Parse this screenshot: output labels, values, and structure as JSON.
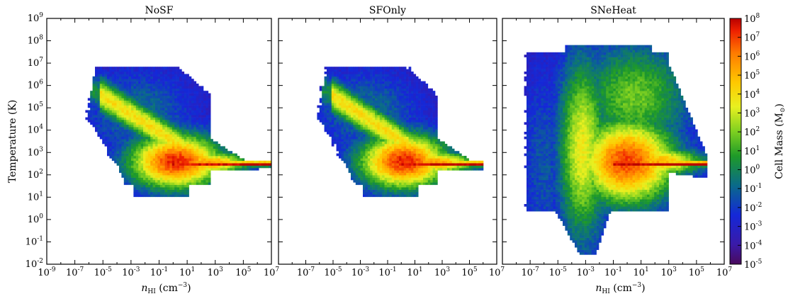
{
  "chart_data": [
    {
      "type": "heatmap",
      "title": "NoSF",
      "xlabel": "n_HI (cm^-3)",
      "ylabel": "Temperature (K)",
      "x_scale": "log",
      "y_scale": "log",
      "xlim": [
        1e-09,
        10000000.0
      ],
      "ylim": [
        0.01,
        1000000000.0
      ],
      "x_ticks": [
        "10^-9",
        "10^-7",
        "10^-5",
        "10^-3",
        "10^-1",
        "10^1",
        "10^3",
        "10^5",
        "10^7"
      ],
      "y_ticks": [
        "10^-2",
        "10^-1",
        "10^0",
        "10^1",
        "10^2",
        "10^3",
        "10^4",
        "10^5",
        "10^6",
        "10^7",
        "10^8",
        "10^9"
      ],
      "extent_log_nHI": [
        -5.7,
        7
      ],
      "extent_log_T": [
        1,
        6.8
      ],
      "equilibrium_T": 300,
      "peak_mass_log": 7.5
    },
    {
      "type": "heatmap",
      "title": "SFOnly",
      "xlabel": "",
      "ylabel": "",
      "x_scale": "log",
      "y_scale": "log",
      "xlim": [
        1e-09,
        10000000.0
      ],
      "ylim": [
        0.01,
        1000000000.0
      ],
      "x_ticks": [
        "10^-9",
        "10^-7",
        "10^-5",
        "10^-3",
        "10^-1",
        "10^1",
        "10^3",
        "10^5",
        "10^7"
      ],
      "extent_log_nHI": [
        -5.7,
        6
      ],
      "extent_log_T": [
        1,
        6.8
      ],
      "equilibrium_T": 300,
      "peak_mass_log": 7.3
    },
    {
      "type": "heatmap",
      "title": "SNeHeat",
      "xlabel": "n_HI (cm^-3)",
      "ylabel": "",
      "x_scale": "log",
      "y_scale": "log",
      "xlim": [
        1e-09,
        10000000.0
      ],
      "ylim": [
        0.01,
        1000000000.0
      ],
      "x_ticks": [
        "10^-9",
        "10^-7",
        "10^-5",
        "10^-3",
        "10^-1",
        "10^1",
        "10^3",
        "10^5",
        "10^7"
      ],
      "extent_log_nHI": [
        -7.2,
        5.8
      ],
      "extent_log_T": [
        -1.5,
        7.9
      ],
      "equilibrium_T": 300,
      "peak_mass_log": 7.8
    }
  ],
  "colorbar": {
    "label": "Cell Mass (M_sun)",
    "scale": "log",
    "range": [
      1e-05,
      100000000.0
    ],
    "ticks": [
      "10^-5",
      "10^-4",
      "10^-3",
      "10^-2",
      "10^-1",
      "10^0",
      "10^1",
      "10^2",
      "10^3",
      "10^4",
      "10^5",
      "10^6",
      "10^7",
      "10^8"
    ],
    "colormap": "spectral"
  }
}
